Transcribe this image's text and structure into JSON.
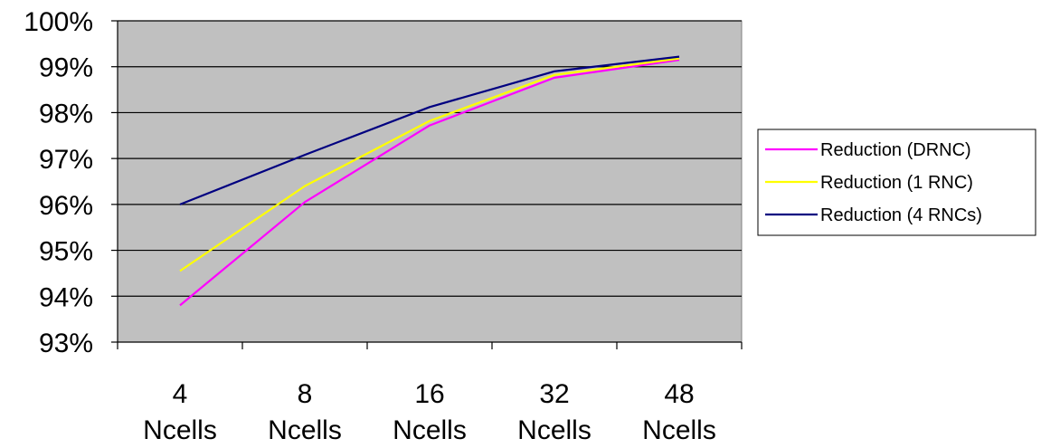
{
  "chart_data": {
    "type": "line",
    "categories": [
      "4 Ncells",
      "8 Ncells",
      "16 Ncells",
      "32 Ncells",
      "48 Ncells"
    ],
    "category_lines": [
      [
        "4",
        "Ncells"
      ],
      [
        "8",
        "Ncells"
      ],
      [
        "16",
        "Ncells"
      ],
      [
        "32",
        "Ncells"
      ],
      [
        "48",
        "Ncells"
      ]
    ],
    "y_ticks": [
      "93%",
      "94%",
      "95%",
      "96%",
      "97%",
      "98%",
      "99%",
      "100%"
    ],
    "ylim": [
      93,
      100
    ],
    "grid": "horizontal",
    "legend_position": "right",
    "plot_background": "#c0c0c0",
    "series": [
      {
        "name": "Reduction (DRNC)",
        "color": "#ff00ff",
        "values": [
          93.8,
          96.05,
          97.72,
          98.76,
          99.15
        ]
      },
      {
        "name": "Reduction (1 RNC)",
        "color": "#ffff00",
        "values": [
          94.55,
          96.4,
          97.82,
          98.82,
          99.18
        ]
      },
      {
        "name": "Reduction (4 RNCs)",
        "color": "#000080",
        "values": [
          96.0,
          97.08,
          98.12,
          98.9,
          99.22
        ]
      }
    ]
  }
}
